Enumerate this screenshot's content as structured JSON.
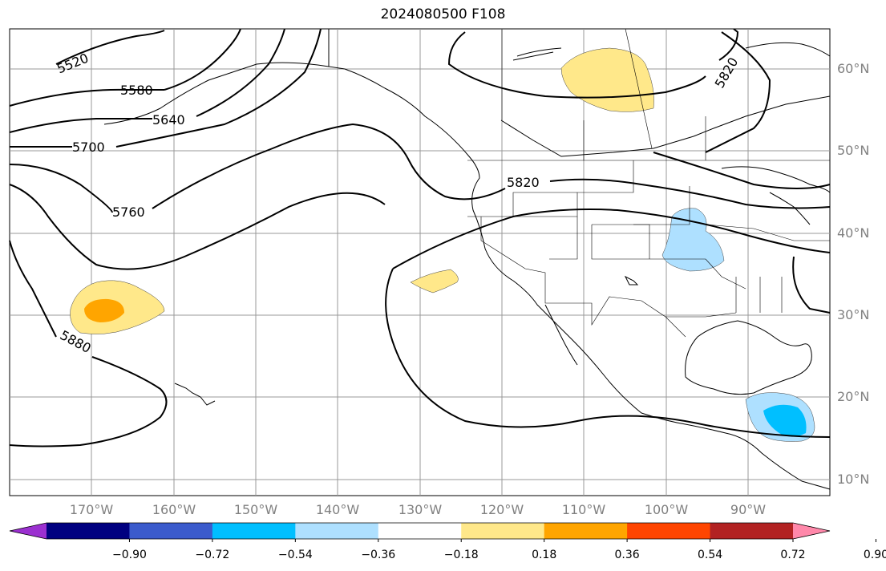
{
  "title": "2024080500 F108",
  "lat_labels": [
    "60°N",
    "50°N",
    "40°N",
    "30°N",
    "20°N",
    "10°N"
  ],
  "lon_labels": [
    "170°W",
    "160°W",
    "150°W",
    "140°W",
    "130°W",
    "120°W",
    "110°W",
    "100°W",
    "90°W"
  ],
  "contour_labels": [
    "5520",
    "5580",
    "5640",
    "5700",
    "5760",
    "5820",
    "5820",
    "5880"
  ],
  "colorbar": {
    "ticks": [
      "−0.90",
      "−0.72",
      "−0.54",
      "−0.36",
      "−0.18",
      "0.18",
      "0.36",
      "0.54",
      "0.72",
      "0.90"
    ],
    "colors": [
      "#9b30d0",
      "#000080",
      "#3b5bcc",
      "#00bfff",
      "#aee0ff",
      "#ffffff",
      "#ffe88a",
      "#ffa500",
      "#ff4500",
      "#b22222",
      "#ff88aa"
    ]
  }
}
